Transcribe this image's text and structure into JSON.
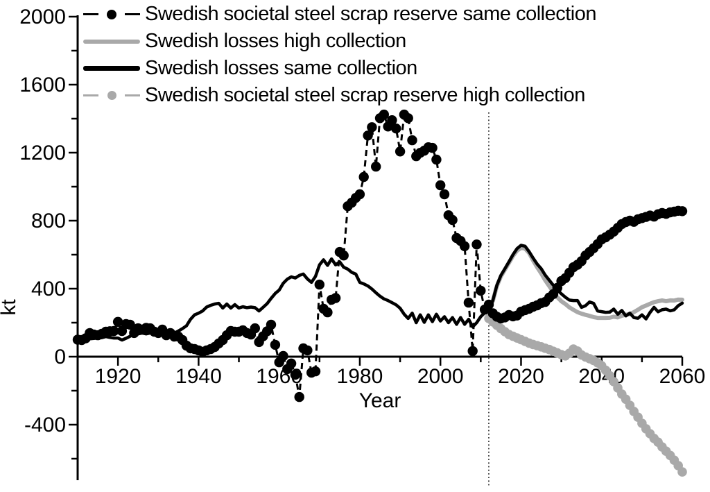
{
  "colors": {
    "black": "#000000",
    "gray": "#a9a9a9",
    "background": "#ffffff"
  },
  "chart_data": {
    "type": "line",
    "title": "",
    "xlabel": "Year",
    "ylabel": "kt",
    "xlim": [
      1910,
      2060
    ],
    "ylim": [
      -720,
      2000
    ],
    "grid": false,
    "legend_position": "top-left",
    "divider_year": 2012,
    "x_axis": {
      "major_ticks": [
        1920,
        1940,
        1960,
        1980,
        2000,
        2020,
        2040,
        2060
      ],
      "major_tick_labels": [
        "1920",
        "1940",
        "1960",
        "1980",
        "2000",
        "2020",
        "2040",
        "2060"
      ],
      "minor_ticks": [
        1930,
        1950,
        1970,
        1990,
        2010,
        2030,
        2050
      ]
    },
    "y_axis": {
      "major_ticks": [
        2000,
        1600,
        1200,
        800,
        400,
        0,
        -400
      ],
      "major_tick_labels": [
        "2000",
        "1600",
        "1200",
        "800",
        "400",
        "0",
        "-400"
      ],
      "minor_ticks": [
        1800,
        1400,
        1000,
        600,
        200,
        -200,
        -600
      ]
    },
    "series": [
      {
        "name": "Swedish societal steel scrap reserve same collection",
        "kind": "dots-dashed",
        "color_key": "black",
        "start_year": 1910,
        "values": [
          100,
          98,
          108,
          139,
          130,
          126,
          135,
          147,
          150,
          151,
          205,
          151,
          192,
          188,
          139,
          167,
          159,
          170,
          167,
          147,
          139,
          159,
          126,
          139,
          118,
          118,
          98,
          65,
          49,
          45,
          37,
          29,
          37,
          45,
          57,
          78,
          98,
          126,
          151,
          147,
          147,
          155,
          139,
          130,
          167,
          86,
          120,
          150,
          188,
          70,
          -33,
          4,
          -73,
          -40,
          -106,
          -237,
          49,
          37,
          -94,
          -86,
          424,
          282,
          261,
          335,
          345,
          616,
          595,
          885,
          906,
          934,
          955,
          1057,
          1301,
          1350,
          1118,
          1403,
          1424,
          1354,
          1391,
          1342,
          1207,
          1424,
          1403,
          1273,
          1179,
          1199,
          1212,
          1232,
          1228,
          1159,
          1008,
          955,
          832,
          804,
          698,
          681,
          650,
          318,
          33,
          660,
          388,
          277,
          306,
          255,
          235,
          225,
          231,
          245,
          237,
          242,
          265,
          274,
          282,
          294,
          302,
          315,
          322,
          348,
          368,
          405,
          445,
          462,
          494,
          526,
          541,
          562,
          595,
          616,
          638,
          662,
          690,
          702,
          718,
          736,
          758,
          780,
          792,
          800,
          793,
          808,
          815,
          822,
          830,
          824,
          838,
          845,
          840,
          849,
          853,
          858,
          856
        ]
      },
      {
        "name": "Swedish losses high collection",
        "kind": "line",
        "color_key": "gray",
        "start_year": 2012,
        "values": [
          282,
          328,
          415,
          472,
          512,
          552,
          592,
          624,
          640,
          636,
          610,
          566,
          526,
          490,
          450,
          415,
          380,
          350,
          326,
          310,
          290,
          276,
          262,
          253,
          246,
          240,
          233,
          228,
          228,
          228,
          229,
          235,
          231,
          241,
          246,
          251,
          262,
          276,
          291,
          301,
          311,
          321,
          326,
          331,
          326,
          331,
          330,
          336,
          335
        ]
      },
      {
        "name": "Swedish losses same collection",
        "kind": "line",
        "color_key": "black",
        "start_year": 1910,
        "values": [
          98,
          100,
          102,
          105,
          107,
          110,
          112,
          118,
          113,
          110,
          110,
          98,
          108,
          120,
          139,
          134,
          139,
          134,
          139,
          134,
          126,
          131,
          126,
          131,
          139,
          151,
          165,
          182,
          220,
          246,
          256,
          269,
          292,
          302,
          310,
          314,
          286,
          310,
          286,
          306,
          286,
          294,
          288,
          292,
          288,
          269,
          290,
          312,
          343,
          372,
          392,
          432,
          456,
          470,
          463,
          478,
          486,
          457,
          437,
          472,
          540,
          570,
          537,
          575,
          540,
          558,
          526,
          515,
          496,
          486,
          437,
          428,
          416,
          398,
          376,
          356,
          340,
          330,
          318,
          305,
          285,
          250,
          225,
          256,
          200,
          246,
          202,
          246,
          206,
          250,
          210,
          235,
          200,
          230,
          190,
          230,
          190,
          220,
          175,
          200,
          235,
          258,
          282,
          330,
          420,
          478,
          518,
          558,
          600,
          636,
          655,
          650,
          618,
          580,
          545,
          518,
          480,
          450,
          420,
          392,
          370,
          350,
          333,
          330,
          330,
          290,
          300,
          322,
          314,
          269,
          265,
          261,
          262,
          280,
          250,
          272,
          240,
          256,
          230,
          226,
          246,
          222,
          260,
          290,
          264,
          276,
          280,
          270,
          276,
          300,
          315
        ]
      },
      {
        "name": "Swedish societal steel scrap reserve high collection",
        "kind": "dots-dashed",
        "color_key": "gray",
        "start_year": 2012,
        "values": [
          225,
          205,
          185,
          165,
          147,
          130,
          120,
          110,
          100,
          90,
          80,
          72,
          65,
          58,
          50,
          42,
          32,
          22,
          12,
          5,
          20,
          45,
          33,
          10,
          -2,
          -12,
          -22,
          -36,
          -53,
          -80,
          -112,
          -147,
          -184,
          -220,
          -250,
          -286,
          -322,
          -356,
          -392,
          -424,
          -453,
          -481,
          -503,
          -531,
          -556,
          -581,
          -609,
          -641,
          -678
        ]
      }
    ]
  }
}
